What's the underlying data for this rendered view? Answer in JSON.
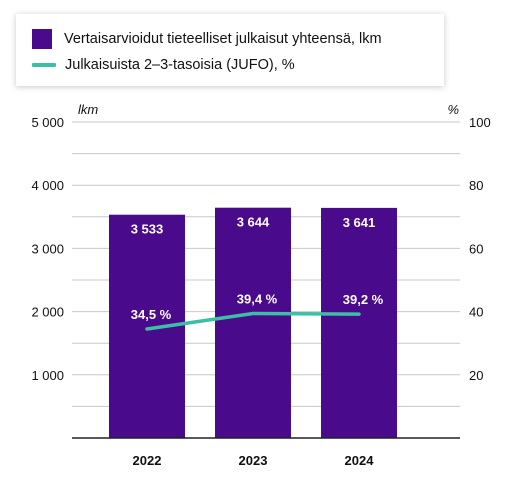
{
  "legend": {
    "bar_label": "Vertaisarvioidut tieteelliset julkaisut yhteensä, lkm",
    "line_label": "Julkaisuista 2–3-tasoisia (JUFO), %"
  },
  "colors": {
    "bar": "#4a0a8c",
    "line": "#3dbfa6",
    "grid": "#c8c8c8",
    "axis": "#222222",
    "text": "#111111"
  },
  "chart_data": {
    "type": "bar",
    "categories": [
      "2022",
      "2023",
      "2024"
    ],
    "series": [
      {
        "name": "Vertaisarvioidut tieteelliset julkaisut yhteensä, lkm",
        "type": "bar",
        "axis": "left",
        "values": [
          3533,
          3644,
          3641
        ],
        "labels": [
          "3 533",
          "3 644",
          "3 641"
        ]
      },
      {
        "name": "Julkaisuista 2–3-tasoisia (JUFO), %",
        "type": "line",
        "axis": "right",
        "values": [
          34.5,
          39.4,
          39.2
        ],
        "labels": [
          "34,5 %",
          "39,4 %",
          "39,2 %"
        ]
      }
    ],
    "y_left": {
      "unit": "lkm",
      "min": 0,
      "max": 5000,
      "ticks": [
        1000,
        2000,
        3000,
        4000,
        5000
      ],
      "tick_labels": [
        "1 000",
        "2 000",
        "3 000",
        "4 000",
        "5 000"
      ]
    },
    "y_right": {
      "unit": "%",
      "min": 0,
      "max": 100,
      "ticks": [
        20,
        40,
        60,
        80,
        100
      ],
      "tick_labels": [
        "20",
        "40",
        "60",
        "80",
        "100"
      ]
    },
    "grid": true,
    "legend_position": "top-left"
  }
}
